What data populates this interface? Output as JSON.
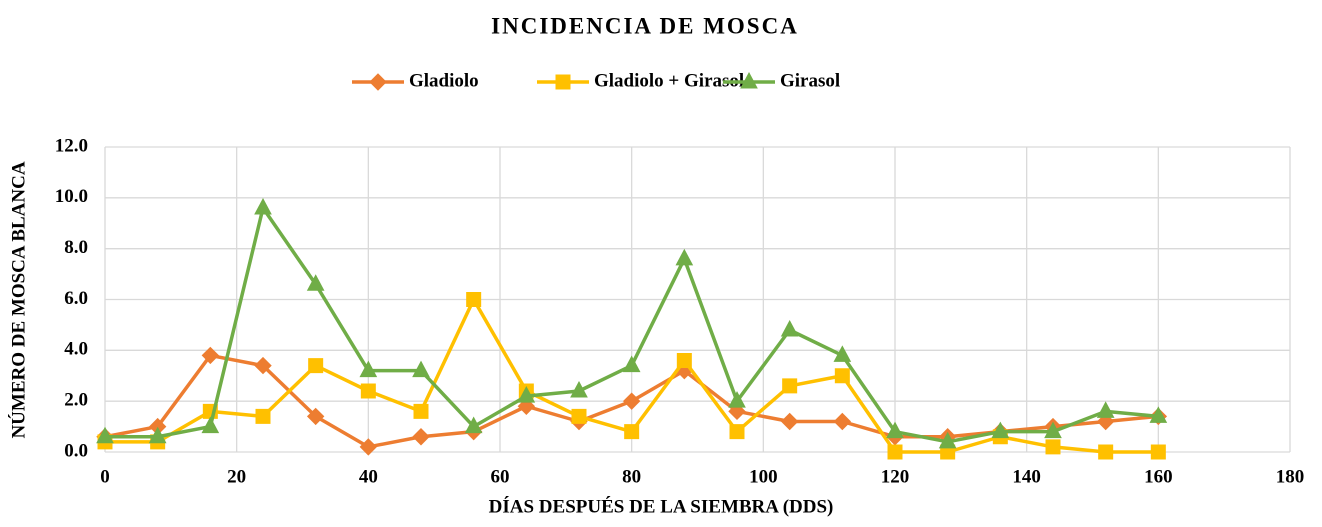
{
  "chart_data": {
    "type": "line",
    "title": "INCIDENCIA DE MOSCA",
    "x_label": "DÍAS DESPUÉS DE LA SIEMBRA (DDS)",
    "y_label": "NÚMERO DE MOSCA BLANCA",
    "x": [
      0,
      8,
      16,
      24,
      32,
      40,
      48,
      56,
      64,
      72,
      80,
      88,
      96,
      104,
      112,
      120,
      128,
      136,
      144,
      152,
      160
    ],
    "series": [
      {
        "name": "Gladiolo",
        "color": "#ED7D31",
        "marker": "diamond",
        "values": [
          0.6,
          1.0,
          3.8,
          3.4,
          1.4,
          0.2,
          0.6,
          0.8,
          1.8,
          1.2,
          2.0,
          3.2,
          1.6,
          1.2,
          1.2,
          0.6,
          0.6,
          0.8,
          1.0,
          1.2,
          1.4
        ]
      },
      {
        "name": "Gladiolo + Girasol",
        "color": "#FFC000",
        "marker": "square",
        "values": [
          0.4,
          0.4,
          1.6,
          1.4,
          3.4,
          2.4,
          1.6,
          6.0,
          2.4,
          1.4,
          0.8,
          3.6,
          0.8,
          2.6,
          3.0,
          0.0,
          0.0,
          0.6,
          0.2,
          0.0,
          0.0
        ]
      },
      {
        "name": "Girasol",
        "color": "#70AD47",
        "marker": "triangle",
        "values": [
          0.6,
          0.6,
          1.0,
          9.6,
          6.6,
          3.2,
          3.2,
          1.0,
          2.2,
          2.4,
          3.4,
          7.6,
          2.0,
          4.8,
          3.8,
          0.8,
          0.4,
          0.8,
          0.8,
          1.6,
          1.4
        ]
      }
    ],
    "xlim": [
      0,
      180
    ],
    "xticks": [
      0,
      20,
      40,
      60,
      80,
      100,
      120,
      140,
      160,
      180
    ],
    "ylim": [
      0,
      12
    ],
    "yticks": [
      {
        "value": 0,
        "label": "0.0"
      },
      {
        "value": 2,
        "label": "2.0"
      },
      {
        "value": 4,
        "label": "4.0"
      },
      {
        "value": 6,
        "label": "6.0"
      },
      {
        "value": 8,
        "label": "8.0"
      },
      {
        "value": 10,
        "label": "10.0"
      },
      {
        "value": 12,
        "label": "12.0"
      }
    ],
    "grid": true,
    "legend": "top"
  }
}
